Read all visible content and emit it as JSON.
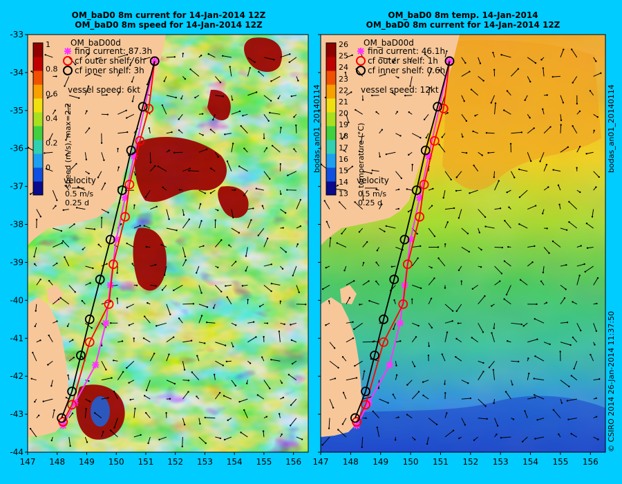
{
  "colors": {
    "frame": "#00ccff",
    "land": "#f7c79a",
    "find_current": "#ff33ff",
    "outer_shelf": "#ff0000",
    "inner_shelf": "#000000"
  },
  "panels": [
    {
      "title_lines": [
        "OM_baD0 8m current for 14-Jan-2014 12Z",
        "OM_baD0 8m speed for 14-Jan-2014 12Z"
      ],
      "colorbar": {
        "ticks": [
          "1",
          "0.8",
          "0.6",
          "0.4",
          "0.2",
          "0"
        ],
        "label": "speed (m/s), max=2.2",
        "colors": [
          "#0a0a8c",
          "#1050e0",
          "#1ea0f0",
          "#30d0b0",
          "#40d040",
          "#a8e020",
          "#f0e010",
          "#f8a000",
          "#f05000",
          "#c00000",
          "#900000"
        ]
      },
      "legend": {
        "title": "OM_baD00d",
        "find": "find current: 87.3h",
        "outer": "cf outer shelf: 6h",
        "inner": "cf inner shelf: 3h",
        "vessel": "vessel speed: 6kt"
      },
      "velocity": {
        "title": "velocity",
        "speed": "0.5 m/s",
        "time": "0.25 d"
      }
    },
    {
      "title_lines": [
        "OM_baD0 8m temp. 14-Jan-2014",
        "OM_baD0 8m current for 14-Jan-2014 12Z"
      ],
      "colorbar": {
        "ticks": [
          "26",
          "25",
          "24",
          "23",
          "22",
          "21",
          "20",
          "19",
          "18",
          "17",
          "16",
          "15",
          "14",
          "13"
        ],
        "label": "temperature (°C)",
        "colors": [
          "#0a0a8c",
          "#1050e0",
          "#1ea0f0",
          "#30d0b0",
          "#40d040",
          "#a8e020",
          "#f0e010",
          "#f8a000",
          "#f05000",
          "#c00000",
          "#900000"
        ]
      },
      "legend": {
        "title": "OM_baD00d",
        "find": "find current: 46.1h",
        "outer": "cf outer shelf: 1h",
        "inner": "cf inner shelf: 0.6h",
        "vessel": "vessel speed: 12kt"
      },
      "velocity": {
        "title": "velocity",
        "speed": "0.5 m/s",
        "time": "0.25 d"
      }
    }
  ],
  "axes": {
    "x_ticks": [
      "147",
      "148",
      "149",
      "150",
      "151",
      "152",
      "153",
      "154",
      "155",
      "156"
    ],
    "y_ticks": [
      "-33",
      "-34",
      "-35",
      "-36",
      "-37",
      "-38",
      "-39",
      "-40",
      "-41",
      "-42",
      "-43",
      "-44"
    ],
    "x_range": [
      147,
      156.5
    ],
    "y_range": [
      -44,
      -33
    ]
  },
  "side_labels": {
    "left": "bodas_an01_20140114",
    "right_top": "bodas_an01_20140114",
    "right_bottom": "© CSIRO 2014   26-Jan-2014 11:37:50"
  },
  "routes": {
    "inner": [
      [
        148.15,
        -43.1
      ],
      [
        148.5,
        -42.4
      ],
      [
        148.8,
        -41.45
      ],
      [
        149.1,
        -40.5
      ],
      [
        149.45,
        -39.45
      ],
      [
        149.8,
        -38.4
      ],
      [
        150.2,
        -37.1
      ],
      [
        150.5,
        -36.05
      ],
      [
        150.9,
        -34.9
      ],
      [
        151.3,
        -33.7
      ]
    ],
    "outer": [
      [
        148.2,
        -43.2
      ],
      [
        148.5,
        -42.75
      ],
      [
        149.1,
        -41.1
      ],
      [
        149.75,
        -40.1
      ],
      [
        149.9,
        -39.05
      ],
      [
        150.3,
        -37.8
      ],
      [
        150.45,
        -36.95
      ],
      [
        150.8,
        -35.8
      ],
      [
        151.1,
        -34.95
      ],
      [
        151.3,
        -33.7
      ]
    ],
    "find": [
      [
        148.2,
        -43.3
      ],
      [
        148.6,
        -42.7
      ],
      [
        149.3,
        -41.7
      ],
      [
        149.65,
        -40.6
      ],
      [
        149.8,
        -39.6
      ],
      [
        150.0,
        -38.4
      ],
      [
        150.3,
        -37.3
      ],
      [
        150.6,
        -36.2
      ],
      [
        151.3,
        -33.7
      ]
    ]
  }
}
